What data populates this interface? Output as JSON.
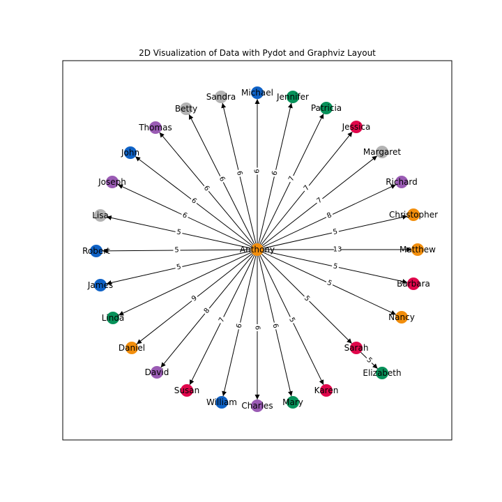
{
  "title": "2D Visualization of Data with Pydot and Graphviz Layout",
  "colors": {
    "orange": "#f28e0c",
    "blue": "#0f62c6",
    "green": "#069159",
    "red": "#e0064b",
    "gray": "#b3b3b3",
    "purple": "#9a5bb4"
  },
  "center": {
    "name": "Anthony",
    "color": "orange"
  },
  "nodes": [
    {
      "id": "michael",
      "name": "Michael",
      "color": "blue",
      "weight": "6"
    },
    {
      "id": "jennifer",
      "name": "Jennifer",
      "color": "green",
      "weight": "6"
    },
    {
      "id": "patricia",
      "name": "Patricia",
      "color": "green",
      "weight": "7"
    },
    {
      "id": "jessica",
      "name": "Jessica",
      "color": "red",
      "weight": "7"
    },
    {
      "id": "margaret",
      "name": "Margaret",
      "color": "gray",
      "weight": "7"
    },
    {
      "id": "richard",
      "name": "Richard",
      "color": "purple",
      "weight": "8"
    },
    {
      "id": "christopher",
      "name": "Christopher",
      "color": "orange",
      "weight": "5"
    },
    {
      "id": "matthew",
      "name": "Matthew",
      "color": "orange",
      "weight": "13"
    },
    {
      "id": "barbara",
      "name": "Barbara",
      "color": "red",
      "weight": "5"
    },
    {
      "id": "nancy",
      "name": "Nancy",
      "color": "orange",
      "weight": "5"
    },
    {
      "id": "sarah",
      "name": "Sarah",
      "color": "red",
      "weight": "5"
    },
    {
      "id": "elizabeth",
      "name": "Elizabeth",
      "color": "green",
      "weight": "5",
      "from": "sarah"
    },
    {
      "id": "karen",
      "name": "Karen",
      "color": "red",
      "weight": "5"
    },
    {
      "id": "mary",
      "name": "Mary",
      "color": "green",
      "weight": "6"
    },
    {
      "id": "charles",
      "name": "Charles",
      "color": "purple",
      "weight": "6"
    },
    {
      "id": "william",
      "name": "William",
      "color": "blue",
      "weight": "6"
    },
    {
      "id": "susan",
      "name": "Susan",
      "color": "red",
      "weight": "7"
    },
    {
      "id": "david",
      "name": "David",
      "color": "purple",
      "weight": "8"
    },
    {
      "id": "daniel",
      "name": "Daniel",
      "color": "orange",
      "weight": "9"
    },
    {
      "id": "linda",
      "name": "Linda",
      "color": "green",
      "weight": ""
    },
    {
      "id": "james",
      "name": "James",
      "color": "blue",
      "weight": "5"
    },
    {
      "id": "robert",
      "name": "Robert",
      "color": "blue",
      "weight": "5"
    },
    {
      "id": "lisa",
      "name": "Lisa",
      "color": "gray",
      "weight": "5"
    },
    {
      "id": "joseph",
      "name": "Joseph",
      "color": "purple",
      "weight": "6"
    },
    {
      "id": "john",
      "name": "John",
      "color": "blue",
      "weight": "6"
    },
    {
      "id": "thomas",
      "name": "Thomas",
      "color": "purple",
      "weight": "6"
    },
    {
      "id": "betty",
      "name": "Betty",
      "color": "gray",
      "weight": "6"
    },
    {
      "id": "sandra",
      "name": "Sandra",
      "color": "gray",
      "weight": "6"
    }
  ]
}
